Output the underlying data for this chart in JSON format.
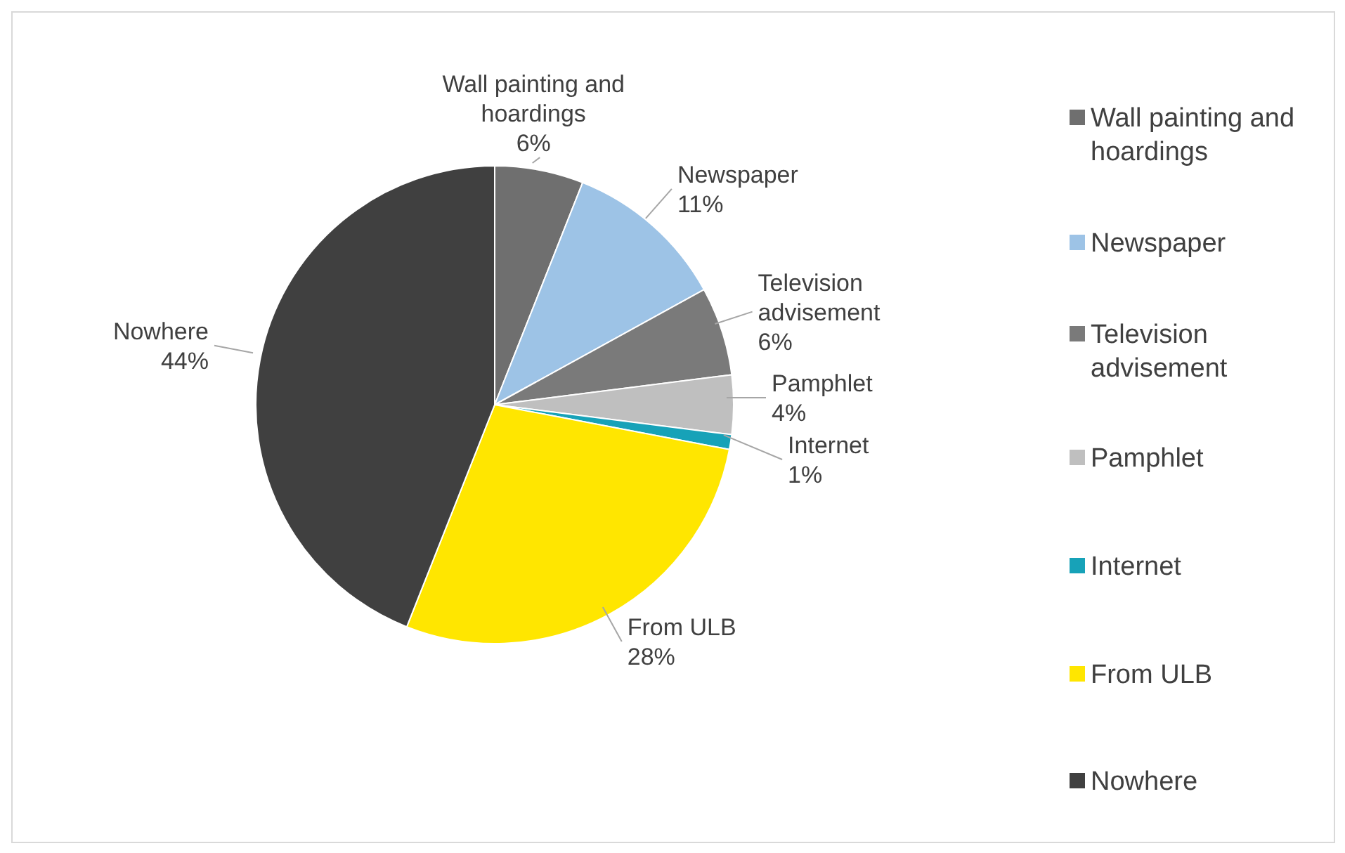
{
  "chart_data": {
    "type": "pie",
    "categories": [
      "Wall painting and hoardings",
      "Newspaper",
      "Television advisement",
      "Pamphlet",
      "Internet",
      "From ULB",
      "Nowhere"
    ],
    "values": [
      6,
      11,
      6,
      4,
      1,
      28,
      44
    ],
    "value_labels": [
      "6%",
      "11%",
      "6%",
      "4%",
      "1%",
      "28%",
      "44%"
    ],
    "colors": [
      "#6f6f6f",
      "#9dc3e6",
      "#7a7a7a",
      "#bfbfbf",
      "#17a2b8",
      "#ffe600",
      "#404040"
    ],
    "legend": "right"
  }
}
